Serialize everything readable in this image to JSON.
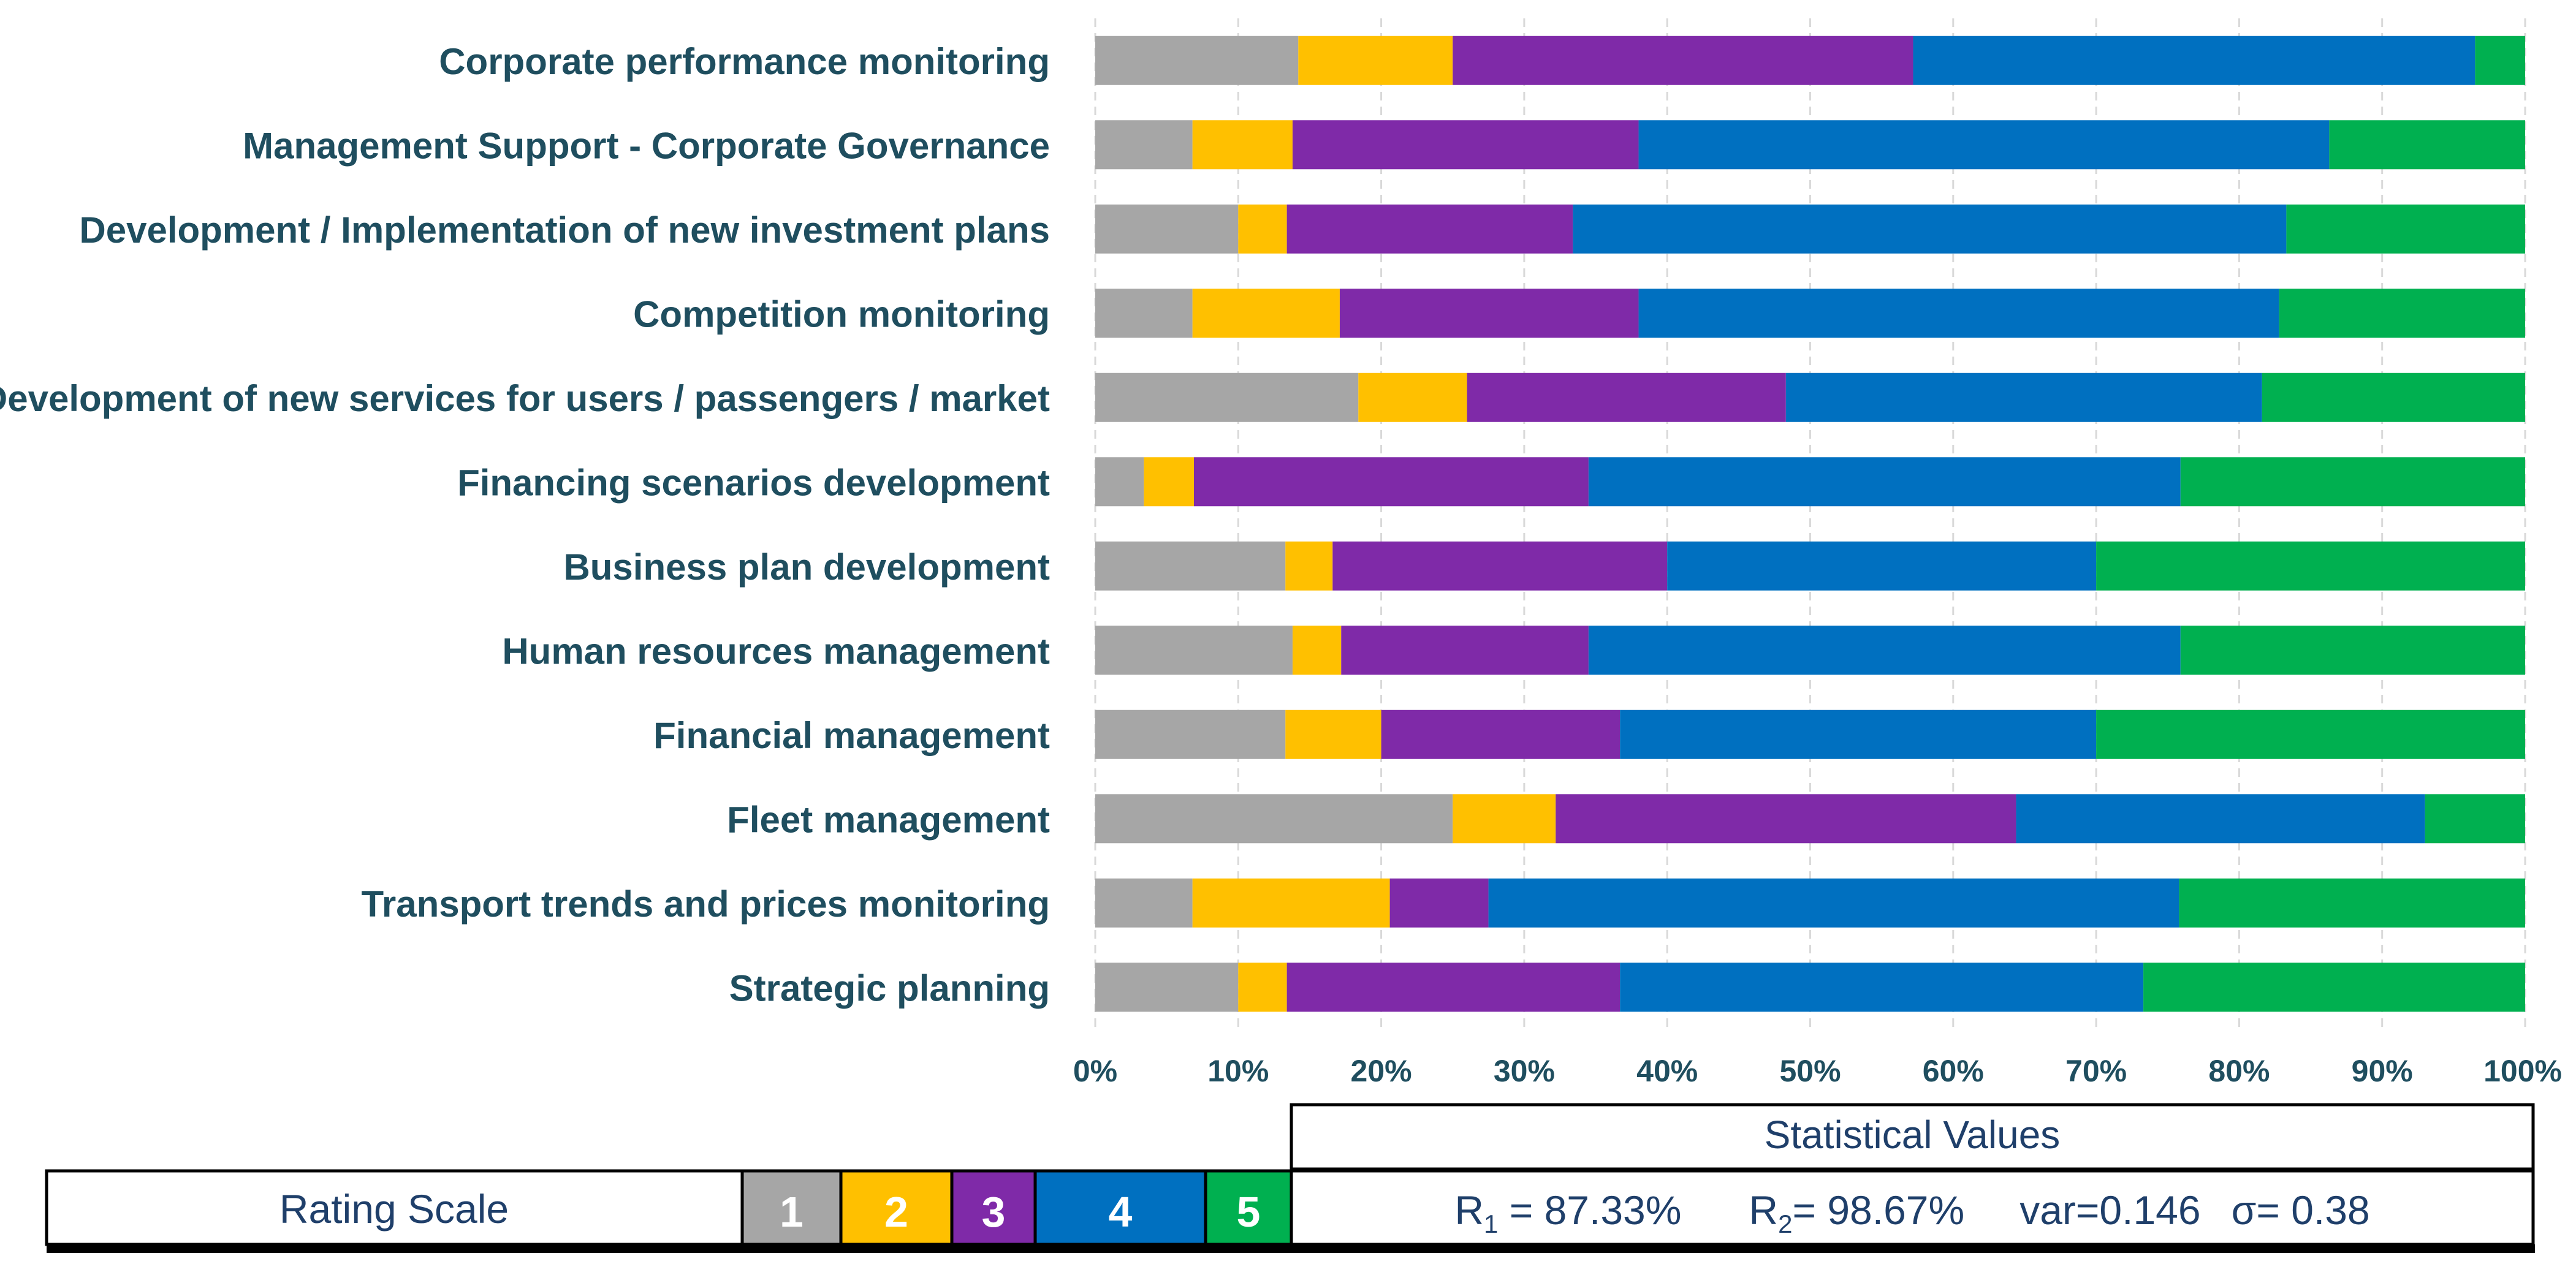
{
  "chart_data": {
    "type": "bar",
    "orientation": "horizontal",
    "stacked": true,
    "percent_stacked": true,
    "categories": [
      "Corporate performance monitoring",
      "Management Support - Corporate Governance",
      "Development / Implementation of new investment plans",
      "Competition monitoring",
      "Development of new services for users / passengers / market",
      "Financing scenarios development",
      "Business plan development",
      "Human resources management",
      "Financial management",
      "Fleet management",
      "Transport trends and prices monitoring",
      "Strategic planning"
    ],
    "series": [
      {
        "name": "1",
        "color": "#a6a6a6",
        "values": [
          14.2,
          6.8,
          10.0,
          6.8,
          18.4,
          3.4,
          13.3,
          13.8,
          13.3,
          25.0,
          6.8,
          10.0
        ]
      },
      {
        "name": "2",
        "color": "#ffc000",
        "values": [
          10.8,
          7.0,
          3.4,
          10.3,
          7.6,
          3.5,
          3.3,
          3.4,
          6.7,
          7.2,
          13.8,
          3.4
        ]
      },
      {
        "name": "3",
        "color": "#7f2aa8",
        "values": [
          32.2,
          24.2,
          20.0,
          20.9,
          22.3,
          27.6,
          23.4,
          17.3,
          16.7,
          32.2,
          6.9,
          23.3
        ]
      },
      {
        "name": "4",
        "color": "#0070c0",
        "values": [
          39.3,
          48.3,
          49.9,
          44.8,
          33.3,
          41.4,
          30.0,
          41.4,
          33.3,
          28.6,
          48.3,
          36.6
        ]
      },
      {
        "name": "5",
        "color": "#00b050",
        "values": [
          3.5,
          13.7,
          16.7,
          17.2,
          18.4,
          24.1,
          30.0,
          24.1,
          30.0,
          7.0,
          24.2,
          26.7
        ]
      }
    ],
    "xlim": [
      0,
      100
    ],
    "xticks": [
      "0%",
      "10%",
      "20%",
      "30%",
      "40%",
      "50%",
      "60%",
      "70%",
      "80%",
      "90%",
      "100%"
    ],
    "title": "",
    "xlabel": "",
    "ylabel": "",
    "grid": true
  },
  "legend": {
    "rating_label": "Rating Scale",
    "stats_header": "Statistical Values",
    "stats": [
      {
        "var": "R",
        "sub": "1",
        "value": " = 87.33%"
      },
      {
        "var": "R",
        "sub": "2",
        "value": "= 98.67%"
      },
      {
        "var": "",
        "sub": "",
        "value": "var=0.146"
      },
      {
        "var": "",
        "sub": "",
        "value": "σ= 0.38"
      }
    ]
  }
}
